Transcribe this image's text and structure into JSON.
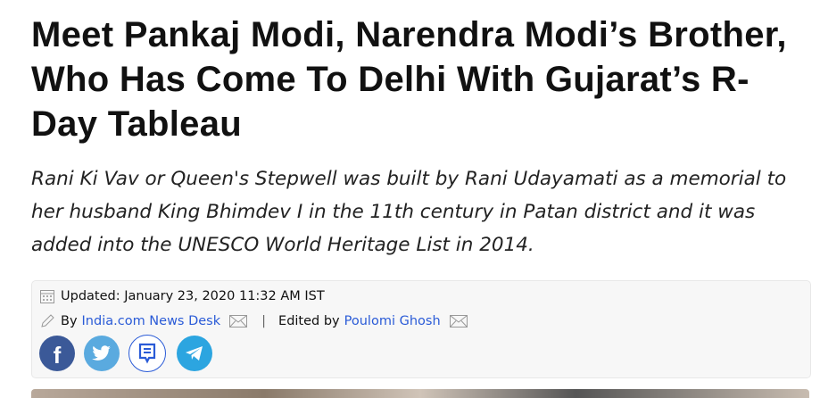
{
  "article": {
    "title": "Meet Pankaj Modi, Narendra Modi’s Brother, Who Has Come To Delhi With Gujarat’s R-Day Tableau",
    "subtitle": "Rani Ki Vav or Queen's Stepwell was built by Rani Udayamati as a memorial to her husband King Bhimdev I in the 11th century in Patan district and it was added into the UNESCO World Heritage List in 2014.",
    "updated": "Updated: January 23, 2020 11:32 AM IST",
    "by_label": "By",
    "author": "India.com News Desk",
    "separator": "|",
    "edited_label": "Edited by",
    "editor": "Poulomi Ghosh"
  },
  "share": {
    "icons": [
      "facebook-icon",
      "twitter-icon",
      "comment-icon",
      "telegram-icon"
    ]
  },
  "colors": {
    "link": "#2a5bd7",
    "facebook": "#3b5998",
    "twitter": "#55acee",
    "telegram": "#2ca5e0"
  }
}
